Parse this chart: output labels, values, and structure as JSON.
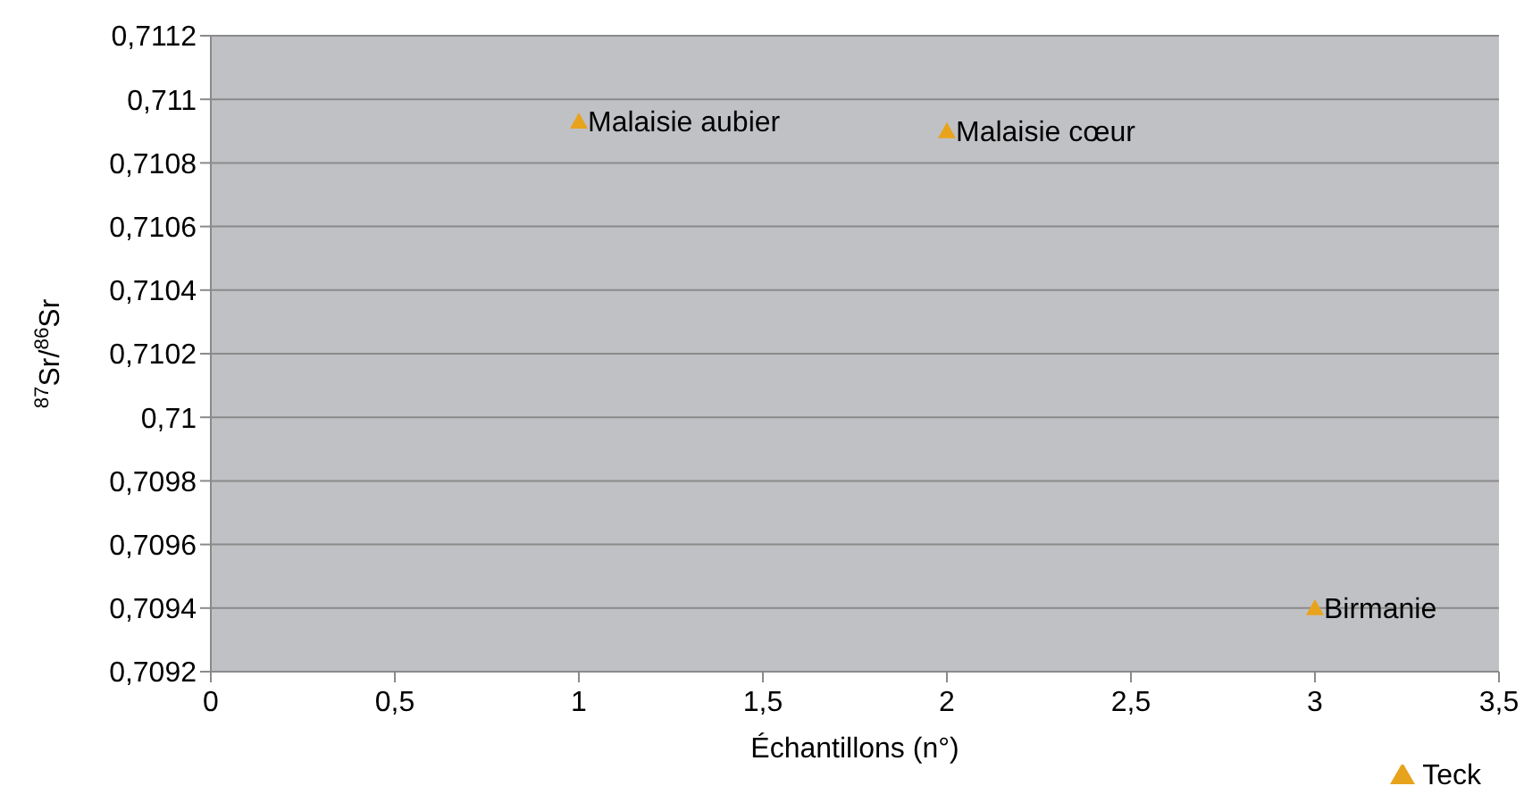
{
  "chart_data": {
    "type": "scatter",
    "xlabel": "Échantillons (n°)",
    "ylabel": "$^{87}$Sr/$^{86}$Sr",
    "x": [
      1,
      2,
      3
    ],
    "series": [
      {
        "name": "Teck",
        "color": "#e8a31c",
        "values": [
          0.71093,
          0.7109,
          0.7094
        ]
      }
    ],
    "marker": "triangle",
    "grid": "y",
    "legend": "bottom right",
    "xlim": [
      0,
      3.5
    ],
    "xticks": [
      0,
      {
        "value": 0.5,
        "label": "0,5"
      },
      1,
      {
        "value": 1.5,
        "label": "1,5"
      },
      2,
      {
        "value": 2.5,
        "label": "2,5"
      },
      3,
      {
        "value": 3.5,
        "label": "3,5"
      }
    ],
    "ylim": [
      0.7092,
      0.7112
    ],
    "yticks": [
      {
        "value": 0.7092,
        "label": "0,7092"
      },
      {
        "value": 0.7094,
        "label": "0,7094"
      },
      {
        "value": 0.7096,
        "label": "0,7096"
      },
      {
        "value": 0.7098,
        "label": "0,7098"
      },
      {
        "value": 0.71,
        "label": "0,71"
      },
      {
        "value": 0.7102,
        "label": "0,7102"
      },
      {
        "value": 0.7104,
        "label": "0,7104"
      },
      {
        "value": 0.7106,
        "label": "0,7106"
      },
      {
        "value": 0.7108,
        "label": "0,7108"
      },
      {
        "value": 0.711,
        "label": "0,711"
      },
      {
        "value": 0.7112,
        "label": "0,7112"
      }
    ],
    "annotations": [
      {
        "text": "Malaisie aubier",
        "x": 1,
        "y": 0.71093
      },
      {
        "text": "Malaisie cœur",
        "x": 2,
        "y": 0.7109
      },
      {
        "text": "Birmanie",
        "x": 3,
        "y": 0.7094
      }
    ]
  }
}
